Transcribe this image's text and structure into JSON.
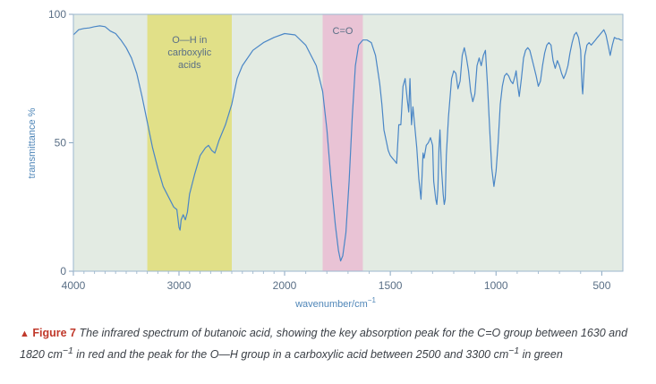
{
  "chart_data": {
    "type": "line",
    "title": "",
    "xlabel": "wavenumber/cm",
    "xlabel_sup": "−1",
    "ylabel": "transmittance %",
    "xlim": [
      4000,
      400
    ],
    "ylim": [
      0,
      100
    ],
    "x_reversed": true,
    "x_ticks": [
      4000,
      3000,
      2000,
      1500,
      1000,
      500
    ],
    "x_tick_labels": [
      "4000",
      "3000",
      "2000",
      "1500",
      "1000",
      "500"
    ],
    "y_ticks": [
      0,
      50,
      100
    ],
    "y_tick_labels": [
      "0",
      "50",
      "100"
    ],
    "grid": false,
    "background_color": "#e3ebe3",
    "line_color": "#4a86c6",
    "bands": [
      {
        "x_from": 3300,
        "x_to": 2500,
        "color": "#e1e088",
        "label_lines": [
          "O—H in",
          "carboxylic",
          "acids"
        ]
      },
      {
        "x_from": 1820,
        "x_to": 1630,
        "color": "#e9c3d5",
        "label_lines": [
          "C=O"
        ]
      }
    ],
    "series": [
      {
        "points": [
          [
            4000,
            92
          ],
          [
            3950,
            94
          ],
          [
            3900,
            94.5
          ],
          [
            3850,
            94.7
          ],
          [
            3800,
            95.2
          ],
          [
            3750,
            95.5
          ],
          [
            3700,
            95.2
          ],
          [
            3650,
            93.5
          ],
          [
            3600,
            92.5
          ],
          [
            3550,
            90
          ],
          [
            3500,
            87
          ],
          [
            3450,
            83
          ],
          [
            3400,
            77
          ],
          [
            3350,
            68
          ],
          [
            3300,
            58
          ],
          [
            3250,
            48
          ],
          [
            3200,
            40
          ],
          [
            3150,
            33
          ],
          [
            3100,
            29
          ],
          [
            3050,
            25
          ],
          [
            3020,
            24
          ],
          [
            3000,
            17
          ],
          [
            2990,
            16
          ],
          [
            2980,
            20
          ],
          [
            2960,
            22
          ],
          [
            2940,
            20
          ],
          [
            2920,
            23
          ],
          [
            2900,
            30
          ],
          [
            2850,
            38
          ],
          [
            2800,
            45
          ],
          [
            2750,
            48
          ],
          [
            2720,
            49
          ],
          [
            2690,
            47
          ],
          [
            2660,
            46
          ],
          [
            2620,
            51
          ],
          [
            2560,
            57
          ],
          [
            2500,
            65
          ],
          [
            2450,
            75
          ],
          [
            2400,
            80
          ],
          [
            2300,
            86
          ],
          [
            2200,
            89
          ],
          [
            2100,
            91
          ],
          [
            2000,
            92.5
          ],
          [
            1950,
            92
          ],
          [
            1900,
            88
          ],
          [
            1850,
            80
          ],
          [
            1820,
            70
          ],
          [
            1800,
            55
          ],
          [
            1780,
            35
          ],
          [
            1760,
            18
          ],
          [
            1745,
            8
          ],
          [
            1735,
            4
          ],
          [
            1725,
            6
          ],
          [
            1710,
            15
          ],
          [
            1695,
            35
          ],
          [
            1680,
            60
          ],
          [
            1665,
            80
          ],
          [
            1650,
            88
          ],
          [
            1630,
            90
          ],
          [
            1610,
            90
          ],
          [
            1590,
            89
          ],
          [
            1570,
            84
          ],
          [
            1550,
            73
          ],
          [
            1540,
            65
          ],
          [
            1530,
            55
          ],
          [
            1520,
            51
          ],
          [
            1510,
            47
          ],
          [
            1500,
            45
          ],
          [
            1490,
            44
          ],
          [
            1480,
            43
          ],
          [
            1470,
            42
          ],
          [
            1460,
            57
          ],
          [
            1450,
            57
          ],
          [
            1440,
            72
          ],
          [
            1430,
            75
          ],
          [
            1420,
            67
          ],
          [
            1413,
            62
          ],
          [
            1407,
            75
          ],
          [
            1400,
            57
          ],
          [
            1393,
            64
          ],
          [
            1385,
            57
          ],
          [
            1375,
            48
          ],
          [
            1365,
            36
          ],
          [
            1355,
            28
          ],
          [
            1350,
            37
          ],
          [
            1345,
            46
          ],
          [
            1340,
            44
          ],
          [
            1330,
            49
          ],
          [
            1320,
            50
          ],
          [
            1310,
            52
          ],
          [
            1300,
            49
          ],
          [
            1295,
            35
          ],
          [
            1285,
            28
          ],
          [
            1280,
            26
          ],
          [
            1275,
            32
          ],
          [
            1270,
            48
          ],
          [
            1265,
            55
          ],
          [
            1258,
            40
          ],
          [
            1250,
            30
          ],
          [
            1245,
            26
          ],
          [
            1240,
            28
          ],
          [
            1235,
            45
          ],
          [
            1225,
            60
          ],
          [
            1210,
            75
          ],
          [
            1200,
            78
          ],
          [
            1190,
            77
          ],
          [
            1180,
            71
          ],
          [
            1170,
            74
          ],
          [
            1160,
            84
          ],
          [
            1150,
            87
          ],
          [
            1140,
            83
          ],
          [
            1130,
            78
          ],
          [
            1120,
            70
          ],
          [
            1110,
            66
          ],
          [
            1100,
            69
          ],
          [
            1090,
            80
          ],
          [
            1080,
            83
          ],
          [
            1070,
            80
          ],
          [
            1060,
            84
          ],
          [
            1050,
            86
          ],
          [
            1040,
            72
          ],
          [
            1030,
            55
          ],
          [
            1020,
            40
          ],
          [
            1010,
            33
          ],
          [
            1000,
            39
          ],
          [
            990,
            50
          ],
          [
            980,
            65
          ],
          [
            970,
            72
          ],
          [
            960,
            76
          ],
          [
            950,
            77
          ],
          [
            940,
            76
          ],
          [
            930,
            74
          ],
          [
            920,
            73
          ],
          [
            910,
            76
          ],
          [
            905,
            78
          ],
          [
            897,
            72
          ],
          [
            890,
            68
          ],
          [
            880,
            75
          ],
          [
            870,
            83
          ],
          [
            860,
            86
          ],
          [
            850,
            87
          ],
          [
            840,
            86
          ],
          [
            825,
            81
          ],
          [
            810,
            76
          ],
          [
            800,
            72
          ],
          [
            790,
            74
          ],
          [
            780,
            80
          ],
          [
            770,
            85
          ],
          [
            760,
            88
          ],
          [
            750,
            89
          ],
          [
            740,
            88
          ],
          [
            730,
            82
          ],
          [
            720,
            79
          ],
          [
            710,
            82
          ],
          [
            700,
            80
          ],
          [
            690,
            77
          ],
          [
            680,
            75
          ],
          [
            670,
            77
          ],
          [
            660,
            80
          ],
          [
            650,
            85
          ],
          [
            640,
            89
          ],
          [
            630,
            92
          ],
          [
            620,
            93
          ],
          [
            610,
            91
          ],
          [
            600,
            86
          ],
          [
            593,
            72
          ],
          [
            590,
            69
          ],
          [
            585,
            76
          ],
          [
            580,
            84
          ],
          [
            575,
            86
          ],
          [
            570,
            88
          ],
          [
            560,
            89
          ],
          [
            550,
            88
          ],
          [
            540,
            89
          ],
          [
            530,
            90
          ],
          [
            520,
            91
          ],
          [
            510,
            92
          ],
          [
            500,
            93
          ],
          [
            490,
            94
          ],
          [
            480,
            92
          ],
          [
            470,
            88
          ],
          [
            460,
            84
          ],
          [
            450,
            88
          ],
          [
            440,
            91
          ],
          [
            430,
            90.5
          ],
          [
            420,
            90.5
          ],
          [
            410,
            90
          ],
          [
            400,
            90
          ]
        ]
      }
    ]
  },
  "caption": {
    "marker": "▲",
    "label": "Figure 7",
    "text_1": "The infrared spectrum of butanoic acid, showing the key absorption peak for the C=O group between 1630 and 1820 cm",
    "sup_1": "−1",
    "text_2": " in red and the peak for the O—H group in a carboxylic acid between 2500 and 3300 cm",
    "sup_2": "−1",
    "text_3": " in green"
  }
}
